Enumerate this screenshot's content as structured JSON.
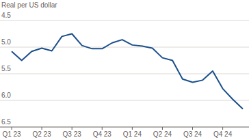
{
  "chart_data": {
    "type": "line",
    "subtitle": "Real per US dollar",
    "categories": [
      "Q1 23",
      null,
      null,
      "Q2 23",
      null,
      null,
      "Q3 23",
      null,
      null,
      "Q4 23",
      null,
      null,
      "Q1 24",
      null,
      null,
      "Q2 24",
      null,
      null,
      "Q3 24",
      null,
      null,
      "Q4 24",
      null,
      null
    ],
    "values": [
      5.08,
      5.25,
      5.08,
      5.02,
      5.07,
      4.8,
      4.75,
      4.97,
      5.03,
      5.03,
      4.92,
      4.86,
      4.96,
      4.98,
      5.02,
      5.2,
      5.25,
      5.6,
      5.66,
      5.62,
      5.45,
      5.78,
      5.98,
      6.16
    ],
    "color": "#1a4f8b",
    "ylim": [
      6.5,
      4.5
    ],
    "yticks": [
      4.5,
      {
        "value": 5,
        "label": "5.0"
      },
      5.5,
      {
        "value": 6,
        "label": "6.0"
      },
      6.5
    ],
    "grid": true
  }
}
